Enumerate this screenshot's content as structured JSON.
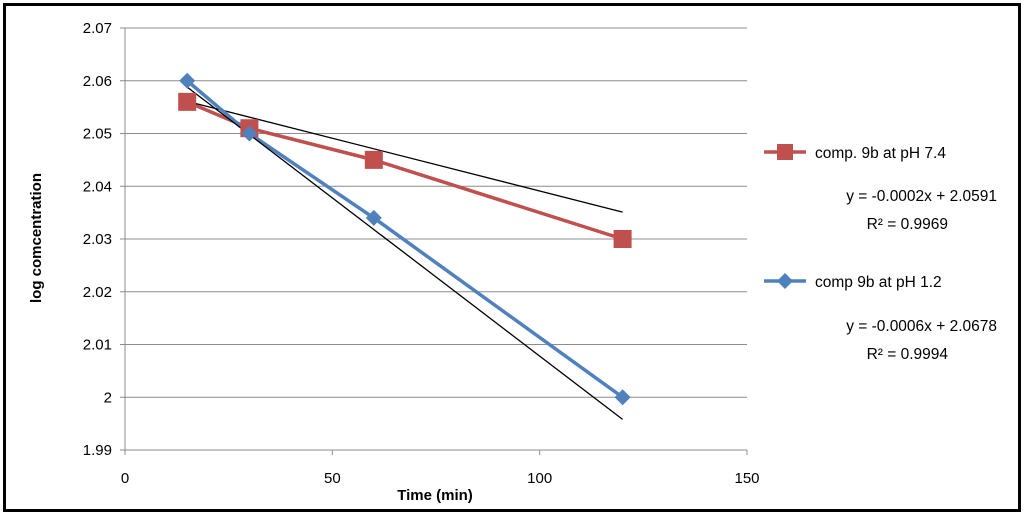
{
  "chart_data": {
    "type": "scatter",
    "xlabel": "Time (min)",
    "ylabel": "log comcentration",
    "xlim": [
      0,
      150
    ],
    "ylim": [
      1.99,
      2.07
    ],
    "x_ticks": [
      "0",
      "50",
      "100",
      "150"
    ],
    "y_ticks": [
      "1.99",
      "2",
      "2.01",
      "2.02",
      "2.03",
      "2.04",
      "2.05",
      "2.06",
      "2.07"
    ],
    "grid": "horizontal",
    "legend_position": "right",
    "series": [
      {
        "name": "comp. 9b at pH 7.4",
        "color": "#C0504D",
        "marker": "square",
        "x": [
          15,
          30,
          60,
          120
        ],
        "y": [
          2.056,
          2.051,
          2.045,
          2.03
        ],
        "trendline": {
          "slope": -0.0002,
          "intercept": 2.0591,
          "color": "#000000"
        },
        "equation": "y = -0.0002x + 2.0591",
        "r2": "R² = 0.9969"
      },
      {
        "name": "comp 9b at pH 1.2",
        "color": "#4F81BD",
        "marker": "diamond",
        "x": [
          15,
          30,
          60,
          120
        ],
        "y": [
          2.06,
          2.05,
          2.034,
          2.0
        ],
        "trendline": {
          "slope": -0.0006,
          "intercept": 2.0678,
          "color": "#000000"
        },
        "equation": "y = -0.0006x + 2.0678",
        "r2": "R² = 0.9994"
      }
    ]
  }
}
